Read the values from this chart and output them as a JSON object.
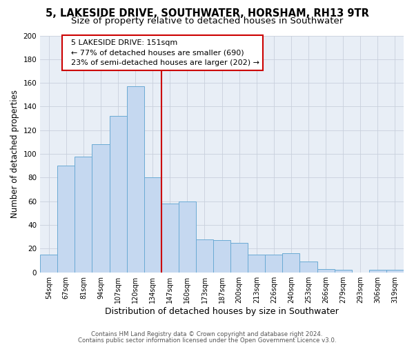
{
  "title": "5, LAKESIDE DRIVE, SOUTHWATER, HORSHAM, RH13 9TR",
  "subtitle": "Size of property relative to detached houses in Southwater",
  "xlabel": "Distribution of detached houses by size in Southwater",
  "ylabel": "Number of detached properties",
  "categories": [
    "54sqm",
    "67sqm",
    "81sqm",
    "94sqm",
    "107sqm",
    "120sqm",
    "134sqm",
    "147sqm",
    "160sqm",
    "173sqm",
    "187sqm",
    "200sqm",
    "213sqm",
    "226sqm",
    "240sqm",
    "253sqm",
    "266sqm",
    "279sqm",
    "293sqm",
    "306sqm",
    "319sqm"
  ],
  "values": [
    15,
    90,
    98,
    108,
    132,
    157,
    80,
    58,
    60,
    28,
    27,
    25,
    15,
    15,
    16,
    9,
    3,
    2,
    0,
    2,
    2
  ],
  "bar_color": "#c5d8f0",
  "bar_edge_color": "#6aaad4",
  "marker_line_color": "#cc0000",
  "annotation_line1": "  5 LAKESIDE DRIVE: 151sqm",
  "annotation_line2": "  ← 77% of detached houses are smaller (690)",
  "annotation_line3": "  23% of semi-detached houses are larger (202) →",
  "annotation_box_color": "#cc0000",
  "ylim": [
    0,
    200
  ],
  "yticks": [
    0,
    20,
    40,
    60,
    80,
    100,
    120,
    140,
    160,
    180,
    200
  ],
  "grid_color": "#c8d0dc",
  "bg_color": "#e8eef6",
  "footer1": "Contains HM Land Registry data © Crown copyright and database right 2024.",
  "footer2": "Contains public sector information licensed under the Open Government Licence v3.0.",
  "title_fontsize": 10.5,
  "subtitle_fontsize": 9.5,
  "xlabel_fontsize": 9,
  "ylabel_fontsize": 8.5,
  "tick_fontsize": 7,
  "annotation_fontsize": 8,
  "footer_fontsize": 6.2
}
